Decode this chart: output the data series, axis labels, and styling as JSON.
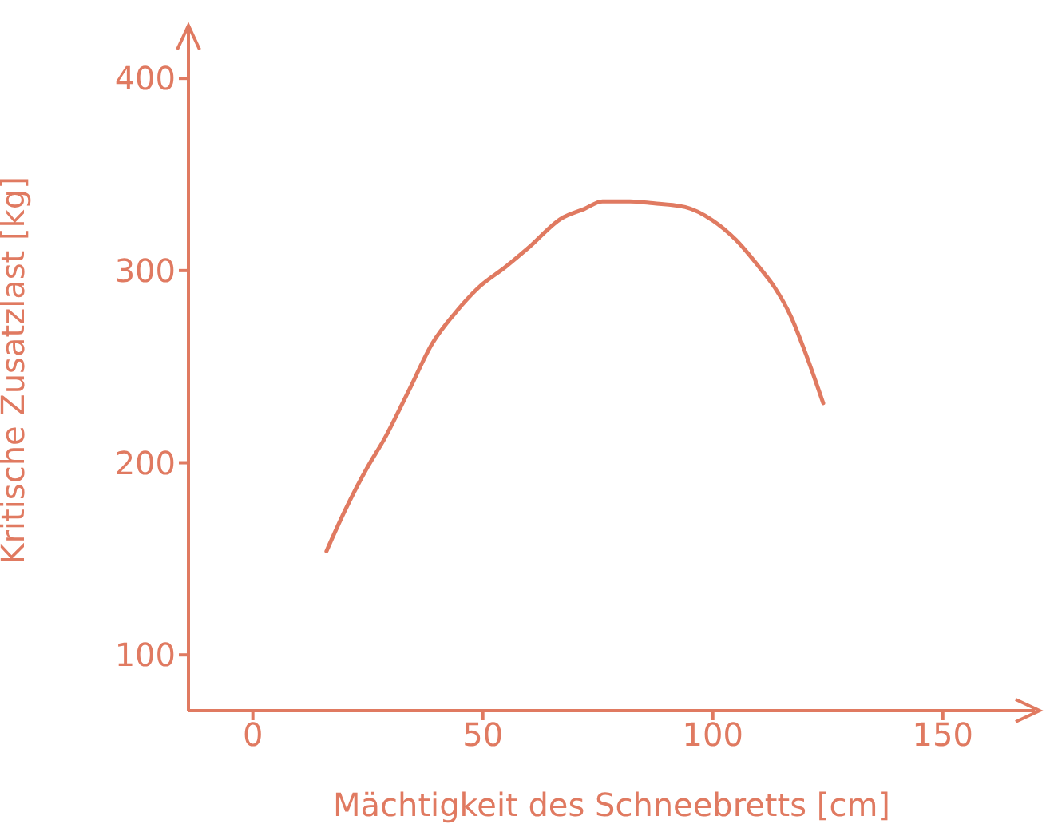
{
  "chart_data": {
    "type": "line",
    "xlabel": "Mächtigkeit des Schneebretts [cm]",
    "ylabel": "Kritische Zusatzlast [kg]",
    "x": [
      16,
      20,
      25,
      28.5,
      34,
      39,
      44,
      49,
      55,
      60,
      67,
      72,
      76,
      82,
      87,
      94,
      100,
      105,
      110,
      113.5,
      117,
      120,
      124
    ],
    "series": [
      {
        "color": "#e07a61",
        "values": [
          154,
          175,
          198,
          212,
          238,
          262,
          278,
          291,
          302,
          312,
          327,
          332,
          336,
          336,
          335,
          333,
          326,
          316,
          302,
          291,
          276,
          258,
          231
        ]
      }
    ],
    "xlim": [
      -14,
      170
    ],
    "xticks": [
      0,
      50,
      100,
      150
    ],
    "ylim": [
      71,
      425
    ],
    "yticks": [
      100,
      200,
      300,
      400
    ],
    "grid": false,
    "legend": false,
    "marker": "none",
    "line_style": "solid"
  }
}
